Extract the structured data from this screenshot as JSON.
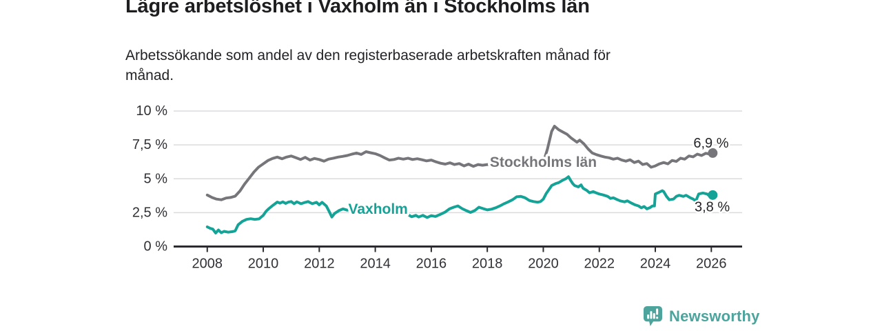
{
  "header": {
    "title": "Lägre arbetslöshet i Vaxholm än i Stockholms län",
    "subtitle_line1": "Arbetssökande som andel av den registerbaserade arbetskraften månad för",
    "subtitle_line2": "månad."
  },
  "footer": {
    "brand": "Newsworthy",
    "icon": "newsworthy-logo-icon",
    "brand_color": "#4CA49D"
  },
  "colors": {
    "grid": "#dbdbdd",
    "axis": "#2b2b2f",
    "tick_text": "#303036",
    "end_label_text": "#242428",
    "background": "#ffffff"
  },
  "chart_data": {
    "type": "line",
    "title": "Lägre arbetslöshet i Vaxholm än i Stockholms län",
    "subtitle": "Arbetssökande som andel av den registerbaserade arbetskraften månad för månad.",
    "xlabel": "",
    "ylabel": "",
    "unit": "%",
    "grid": true,
    "legend_position": "inline-labels",
    "xlim": [
      2006.8,
      2027.1
    ],
    "ylim": [
      0,
      10
    ],
    "x_ticks": [
      {
        "value": 2008,
        "label": "2008"
      },
      {
        "value": 2010,
        "label": "2010"
      },
      {
        "value": 2012,
        "label": "2012"
      },
      {
        "value": 2014,
        "label": "2014"
      },
      {
        "value": 2016,
        "label": "2016"
      },
      {
        "value": 2018,
        "label": "2018"
      },
      {
        "value": 2020,
        "label": "2020"
      },
      {
        "value": 2022,
        "label": "2022"
      },
      {
        "value": 2024,
        "label": "2024"
      },
      {
        "value": 2026,
        "label": "2026"
      }
    ],
    "y_ticks": [
      {
        "value": 0,
        "label": "0 %"
      },
      {
        "value": 2.5,
        "label": "2,5 %"
      },
      {
        "value": 5,
        "label": "5 %"
      },
      {
        "value": 7.5,
        "label": "7,5 %"
      },
      {
        "value": 10,
        "label": "10 %"
      }
    ],
    "series": [
      {
        "key": "stockholms-lan",
        "name": "Stockholms län",
        "color": "#76757a",
        "end_value_label": "6,9 %",
        "points": [
          [
            2008.0,
            3.8
          ],
          [
            2008.17,
            3.62
          ],
          [
            2008.33,
            3.5
          ],
          [
            2008.5,
            3.45
          ],
          [
            2008.67,
            3.58
          ],
          [
            2008.83,
            3.62
          ],
          [
            2009.0,
            3.72
          ],
          [
            2009.17,
            4.1
          ],
          [
            2009.33,
            4.6
          ],
          [
            2009.5,
            5.05
          ],
          [
            2009.67,
            5.5
          ],
          [
            2009.83,
            5.85
          ],
          [
            2010.0,
            6.1
          ],
          [
            2010.17,
            6.35
          ],
          [
            2010.33,
            6.5
          ],
          [
            2010.5,
            6.6
          ],
          [
            2010.67,
            6.48
          ],
          [
            2010.83,
            6.6
          ],
          [
            2011.0,
            6.68
          ],
          [
            2011.17,
            6.55
          ],
          [
            2011.33,
            6.42
          ],
          [
            2011.5,
            6.58
          ],
          [
            2011.67,
            6.38
          ],
          [
            2011.83,
            6.5
          ],
          [
            2012.0,
            6.42
          ],
          [
            2012.17,
            6.3
          ],
          [
            2012.33,
            6.45
          ],
          [
            2012.5,
            6.52
          ],
          [
            2012.67,
            6.6
          ],
          [
            2012.83,
            6.65
          ],
          [
            2013.0,
            6.72
          ],
          [
            2013.17,
            6.82
          ],
          [
            2013.33,
            6.9
          ],
          [
            2013.5,
            6.8
          ],
          [
            2013.67,
            7.0
          ],
          [
            2013.83,
            6.92
          ],
          [
            2014.0,
            6.85
          ],
          [
            2014.17,
            6.72
          ],
          [
            2014.33,
            6.55
          ],
          [
            2014.5,
            6.38
          ],
          [
            2014.67,
            6.42
          ],
          [
            2014.83,
            6.52
          ],
          [
            2015.0,
            6.45
          ],
          [
            2015.17,
            6.52
          ],
          [
            2015.33,
            6.42
          ],
          [
            2015.5,
            6.48
          ],
          [
            2015.67,
            6.4
          ],
          [
            2015.83,
            6.32
          ],
          [
            2016.0,
            6.38
          ],
          [
            2016.17,
            6.25
          ],
          [
            2016.33,
            6.15
          ],
          [
            2016.5,
            6.08
          ],
          [
            2016.67,
            6.18
          ],
          [
            2016.83,
            6.05
          ],
          [
            2017.0,
            6.12
          ],
          [
            2017.17,
            5.95
          ],
          [
            2017.33,
            6.08
          ],
          [
            2017.5,
            5.92
          ],
          [
            2017.67,
            6.05
          ],
          [
            2017.83,
            6.0
          ],
          [
            2018.0,
            6.05
          ],
          [
            2018.25,
            6.0
          ],
          [
            2018.5,
            6.02
          ],
          [
            2018.75,
            5.98
          ],
          [
            2019.0,
            5.95
          ],
          [
            2019.25,
            6.0
          ],
          [
            2019.5,
            5.92
          ],
          [
            2019.75,
            6.0
          ],
          [
            2020.0,
            6.2
          ],
          [
            2020.15,
            7.2
          ],
          [
            2020.3,
            8.5
          ],
          [
            2020.4,
            8.88
          ],
          [
            2020.55,
            8.62
          ],
          [
            2020.7,
            8.45
          ],
          [
            2020.85,
            8.28
          ],
          [
            2021.0,
            8.0
          ],
          [
            2021.1,
            7.85
          ],
          [
            2021.2,
            7.7
          ],
          [
            2021.3,
            7.85
          ],
          [
            2021.45,
            7.58
          ],
          [
            2021.6,
            7.2
          ],
          [
            2021.75,
            6.9
          ],
          [
            2021.9,
            6.78
          ],
          [
            2022.05,
            6.68
          ],
          [
            2022.2,
            6.6
          ],
          [
            2022.35,
            6.55
          ],
          [
            2022.5,
            6.45
          ],
          [
            2022.65,
            6.52
          ],
          [
            2022.8,
            6.38
          ],
          [
            2022.95,
            6.3
          ],
          [
            2023.1,
            6.4
          ],
          [
            2023.25,
            6.2
          ],
          [
            2023.4,
            6.3
          ],
          [
            2023.55,
            6.05
          ],
          [
            2023.7,
            6.12
          ],
          [
            2023.85,
            5.85
          ],
          [
            2024.0,
            5.95
          ],
          [
            2024.15,
            6.1
          ],
          [
            2024.3,
            6.2
          ],
          [
            2024.45,
            6.1
          ],
          [
            2024.6,
            6.35
          ],
          [
            2024.75,
            6.28
          ],
          [
            2024.9,
            6.52
          ],
          [
            2025.05,
            6.45
          ],
          [
            2025.2,
            6.68
          ],
          [
            2025.35,
            6.62
          ],
          [
            2025.5,
            6.82
          ],
          [
            2025.65,
            6.72
          ],
          [
            2025.8,
            6.88
          ],
          [
            2025.95,
            6.82
          ],
          [
            2026.05,
            6.9
          ]
        ]
      },
      {
        "key": "vaxholm",
        "name": "Vaxholm",
        "color": "#14a396",
        "end_value_label": "3,8 %",
        "points": [
          [
            2008.0,
            1.45
          ],
          [
            2008.1,
            1.35
          ],
          [
            2008.2,
            1.28
          ],
          [
            2008.3,
            1.0
          ],
          [
            2008.4,
            1.22
          ],
          [
            2008.5,
            1.02
          ],
          [
            2008.6,
            1.12
          ],
          [
            2008.75,
            1.06
          ],
          [
            2008.9,
            1.1
          ],
          [
            2009.0,
            1.16
          ],
          [
            2009.1,
            1.6
          ],
          [
            2009.25,
            1.85
          ],
          [
            2009.4,
            2.0
          ],
          [
            2009.55,
            2.05
          ],
          [
            2009.7,
            2.0
          ],
          [
            2009.85,
            2.04
          ],
          [
            2010.0,
            2.3
          ],
          [
            2010.1,
            2.6
          ],
          [
            2010.2,
            2.8
          ],
          [
            2010.35,
            3.05
          ],
          [
            2010.5,
            3.28
          ],
          [
            2010.6,
            3.2
          ],
          [
            2010.7,
            3.3
          ],
          [
            2010.8,
            3.18
          ],
          [
            2010.9,
            3.28
          ],
          [
            2011.0,
            3.32
          ],
          [
            2011.1,
            3.16
          ],
          [
            2011.2,
            3.3
          ],
          [
            2011.35,
            3.16
          ],
          [
            2011.5,
            3.26
          ],
          [
            2011.6,
            3.32
          ],
          [
            2011.75,
            3.16
          ],
          [
            2011.9,
            3.26
          ],
          [
            2012.0,
            3.08
          ],
          [
            2012.1,
            3.26
          ],
          [
            2012.25,
            3.0
          ],
          [
            2012.35,
            2.6
          ],
          [
            2012.45,
            2.18
          ],
          [
            2012.55,
            2.45
          ],
          [
            2012.7,
            2.65
          ],
          [
            2012.85,
            2.78
          ],
          [
            2013.0,
            2.68
          ],
          [
            2013.2,
            2.78
          ],
          [
            2013.4,
            2.7
          ],
          [
            2013.6,
            2.8
          ],
          [
            2013.8,
            2.72
          ],
          [
            2014.0,
            2.78
          ],
          [
            2014.2,
            2.68
          ],
          [
            2014.4,
            2.76
          ],
          [
            2014.6,
            2.65
          ],
          [
            2014.8,
            2.58
          ],
          [
            2015.0,
            2.52
          ],
          [
            2015.15,
            2.38
          ],
          [
            2015.3,
            2.2
          ],
          [
            2015.45,
            2.3
          ],
          [
            2015.55,
            2.18
          ],
          [
            2015.7,
            2.3
          ],
          [
            2015.85,
            2.14
          ],
          [
            2016.0,
            2.28
          ],
          [
            2016.15,
            2.22
          ],
          [
            2016.3,
            2.35
          ],
          [
            2016.5,
            2.55
          ],
          [
            2016.65,
            2.78
          ],
          [
            2016.8,
            2.9
          ],
          [
            2016.95,
            3.0
          ],
          [
            2017.1,
            2.8
          ],
          [
            2017.25,
            2.65
          ],
          [
            2017.4,
            2.52
          ],
          [
            2017.55,
            2.65
          ],
          [
            2017.7,
            2.9
          ],
          [
            2017.85,
            2.8
          ],
          [
            2018.0,
            2.7
          ],
          [
            2018.15,
            2.76
          ],
          [
            2018.3,
            2.86
          ],
          [
            2018.45,
            3.0
          ],
          [
            2018.6,
            3.16
          ],
          [
            2018.75,
            3.3
          ],
          [
            2018.9,
            3.45
          ],
          [
            2019.05,
            3.67
          ],
          [
            2019.2,
            3.7
          ],
          [
            2019.35,
            3.6
          ],
          [
            2019.5,
            3.4
          ],
          [
            2019.65,
            3.32
          ],
          [
            2019.8,
            3.27
          ],
          [
            2019.9,
            3.32
          ],
          [
            2020.0,
            3.5
          ],
          [
            2020.1,
            3.9
          ],
          [
            2020.2,
            4.2
          ],
          [
            2020.3,
            4.5
          ],
          [
            2020.45,
            4.65
          ],
          [
            2020.55,
            4.72
          ],
          [
            2020.7,
            4.9
          ],
          [
            2020.8,
            5.0
          ],
          [
            2020.9,
            5.15
          ],
          [
            2020.97,
            4.9
          ],
          [
            2021.05,
            4.65
          ],
          [
            2021.12,
            4.5
          ],
          [
            2021.25,
            4.4
          ],
          [
            2021.35,
            4.55
          ],
          [
            2021.42,
            4.3
          ],
          [
            2021.55,
            4.15
          ],
          [
            2021.65,
            3.97
          ],
          [
            2021.78,
            4.05
          ],
          [
            2021.9,
            3.95
          ],
          [
            2022.0,
            3.88
          ],
          [
            2022.15,
            3.8
          ],
          [
            2022.3,
            3.7
          ],
          [
            2022.4,
            3.55
          ],
          [
            2022.5,
            3.6
          ],
          [
            2022.65,
            3.45
          ],
          [
            2022.75,
            3.37
          ],
          [
            2022.9,
            3.3
          ],
          [
            2023.0,
            3.37
          ],
          [
            2023.15,
            3.2
          ],
          [
            2023.25,
            3.1
          ],
          [
            2023.4,
            3.0
          ],
          [
            2023.5,
            2.86
          ],
          [
            2023.6,
            2.95
          ],
          [
            2023.7,
            2.78
          ],
          [
            2023.8,
            2.86
          ],
          [
            2023.9,
            3.0
          ],
          [
            2023.97,
            3.0
          ],
          [
            2024.0,
            3.88
          ],
          [
            2024.1,
            3.97
          ],
          [
            2024.25,
            4.12
          ],
          [
            2024.3,
            4.05
          ],
          [
            2024.4,
            3.7
          ],
          [
            2024.5,
            3.45
          ],
          [
            2024.65,
            3.5
          ],
          [
            2024.75,
            3.7
          ],
          [
            2024.85,
            3.78
          ],
          [
            2025.0,
            3.7
          ],
          [
            2025.1,
            3.78
          ],
          [
            2025.25,
            3.6
          ],
          [
            2025.35,
            3.5
          ],
          [
            2025.45,
            3.37
          ],
          [
            2025.55,
            3.88
          ],
          [
            2025.7,
            3.95
          ],
          [
            2025.85,
            3.88
          ],
          [
            2025.95,
            3.7
          ],
          [
            2026.05,
            3.8
          ]
        ]
      }
    ],
    "series_labels": [
      {
        "series": "stockholms-lan",
        "text": "Stockholms län",
        "x": 2020.0,
        "y": 6.2,
        "anchor": "middle"
      },
      {
        "series": "vaxholm",
        "text": "Vaxholm",
        "x": 2014.1,
        "y": 2.76,
        "anchor": "middle"
      }
    ],
    "end_labels": [
      {
        "series": "stockholms-lan",
        "text": "6,9 %",
        "x": 2026.62,
        "y": 7.3,
        "anchor": "end"
      },
      {
        "series": "vaxholm",
        "text": "3,8 %",
        "x": 2026.66,
        "y": 2.6,
        "anchor": "end"
      }
    ]
  }
}
